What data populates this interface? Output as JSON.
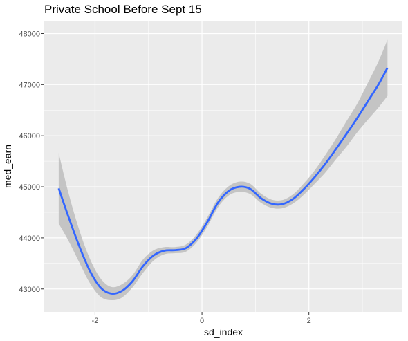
{
  "chart_data": {
    "type": "line",
    "title": "Private School Before Sept 15",
    "xlabel": "sd_index",
    "ylabel": "med_earn",
    "xlim": [
      -2.95,
      3.75
    ],
    "ylim": [
      42550,
      48250
    ],
    "x_ticks": [
      -2,
      0,
      2
    ],
    "x_tick_labels": [
      "-2",
      "0",
      "2"
    ],
    "y_ticks": [
      43000,
      44000,
      45000,
      46000,
      47000,
      48000
    ],
    "y_tick_labels": [
      "43000",
      "44000",
      "45000",
      "46000",
      "47000",
      "48000"
    ],
    "grid": true,
    "legend": "none",
    "colors": {
      "panel": "#ebebeb",
      "grid": "#ffffff",
      "line": "#3366ff",
      "band": "#bdbdbd"
    },
    "series": [
      {
        "x": [
          -2.68,
          -2.5,
          -2.3,
          -2.1,
          -1.9,
          -1.7,
          -1.5,
          -1.3,
          -1.1,
          -0.9,
          -0.7,
          -0.5,
          -0.3,
          -0.1,
          0.1,
          0.3,
          0.5,
          0.7,
          0.9,
          1.1,
          1.3,
          1.5,
          1.7,
          1.9,
          2.1,
          2.3,
          2.5,
          2.7,
          2.9,
          3.1,
          3.3,
          3.47
        ],
        "y": [
          44970,
          44420,
          43850,
          43360,
          43030,
          42910,
          42960,
          43150,
          43450,
          43660,
          43750,
          43760,
          43800,
          43990,
          44310,
          44690,
          44920,
          45000,
          44960,
          44780,
          44670,
          44660,
          44760,
          44950,
          45180,
          45440,
          45730,
          46030,
          46340,
          46670,
          47000,
          47330
        ],
        "lower": [
          44280,
          43950,
          43530,
          43120,
          42850,
          42780,
          42830,
          43030,
          43320,
          43560,
          43680,
          43700,
          43730,
          43910,
          44220,
          44600,
          44830,
          44900,
          44860,
          44690,
          44590,
          44580,
          44670,
          44840,
          45050,
          45270,
          45530,
          45780,
          46060,
          46310,
          46550,
          46780
        ],
        "upper": [
          45660,
          44890,
          44170,
          43600,
          43210,
          43040,
          43090,
          43270,
          43580,
          43760,
          43820,
          43820,
          43870,
          44070,
          44400,
          44780,
          45010,
          45100,
          45060,
          44870,
          44750,
          44740,
          44850,
          45060,
          45310,
          45610,
          45930,
          46280,
          46620,
          47030,
          47450,
          47880
        ]
      }
    ]
  }
}
